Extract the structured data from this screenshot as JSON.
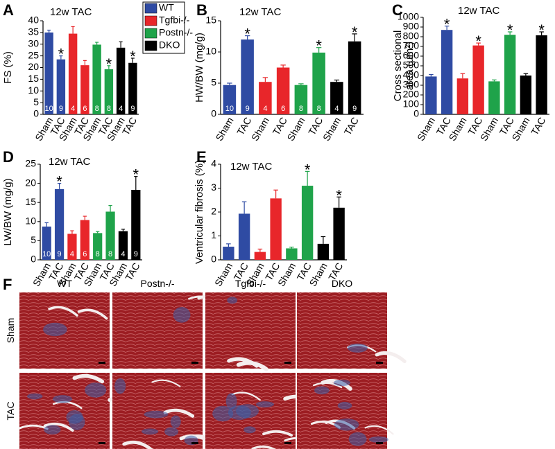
{
  "chart_data": [
    {
      "type": "bar",
      "label": "A",
      "title": "12w TAC",
      "ylabel": "FS (%)",
      "categories": [
        "Sham",
        "TAC",
        "Sham",
        "TAC",
        "Sham",
        "TAC",
        "Sham",
        "TAC"
      ],
      "values": [
        35,
        23.5,
        34.5,
        21,
        29.8,
        19.3,
        28.5,
        22
      ],
      "errors": [
        1,
        1.5,
        3,
        2,
        1,
        1.5,
        2.5,
        2
      ],
      "colors": [
        "#2f4ba3",
        "#2f4ba3",
        "#e8262a",
        "#e8262a",
        "#1fa34a",
        "#1fa34a",
        "#000000",
        "#000000"
      ],
      "bar_labels": [
        "10",
        "9",
        "4",
        "6",
        "8",
        "8",
        "4",
        "9"
      ],
      "significance": [
        null,
        "*",
        null,
        null,
        null,
        "*",
        null,
        "*"
      ],
      "ylim": [
        0,
        40
      ],
      "yticks": [
        0,
        5,
        10,
        15,
        20,
        25,
        30,
        35,
        40
      ],
      "legend": [
        {
          "name": "WT",
          "color": "#2f4ba3"
        },
        {
          "name": "Tgfbi-/-",
          "color": "#e8262a"
        },
        {
          "name": "Postn-/-",
          "color": "#1fa34a"
        },
        {
          "name": "DKO",
          "color": "#000000"
        }
      ]
    },
    {
      "type": "bar",
      "label": "B",
      "title": "12w TAC",
      "ylabel": "HW/BW (mg/g)",
      "categories": [
        "Sham",
        "TAC",
        "Sham",
        "TAC",
        "Sham",
        "TAC",
        "Sham",
        "TAC"
      ],
      "values": [
        4.7,
        12,
        5.2,
        7.5,
        4.7,
        9.9,
        5.2,
        11.7
      ],
      "errors": [
        0.3,
        0.6,
        0.7,
        0.4,
        0.2,
        0.8,
        0.3,
        1.2
      ],
      "colors": [
        "#2f4ba3",
        "#2f4ba3",
        "#e8262a",
        "#e8262a",
        "#1fa34a",
        "#1fa34a",
        "#000000",
        "#000000"
      ],
      "bar_labels": [
        "10",
        "9",
        "4",
        "6",
        "8",
        "8",
        "4",
        "9"
      ],
      "significance": [
        null,
        "*",
        null,
        null,
        null,
        "*",
        null,
        "*"
      ],
      "ylim": [
        0,
        15
      ],
      "yticks": [
        0,
        5,
        10,
        15
      ]
    },
    {
      "type": "bar",
      "label": "C",
      "title": "12w TAC",
      "ylabel_lines": [
        "Cross sectional",
        "area (μm²)"
      ],
      "categories": [
        "Sham",
        "TAC",
        "Sham",
        "TAC",
        "Sham",
        "TAC",
        "Sham",
        "TAC"
      ],
      "values": [
        390,
        870,
        370,
        710,
        340,
        820,
        400,
        815
      ],
      "errors": [
        20,
        40,
        50,
        25,
        15,
        30,
        20,
        35
      ],
      "colors": [
        "#2f4ba3",
        "#2f4ba3",
        "#e8262a",
        "#e8262a",
        "#1fa34a",
        "#1fa34a",
        "#000000",
        "#000000"
      ],
      "significance": [
        null,
        "*",
        null,
        "*",
        null,
        "*",
        null,
        "*"
      ],
      "ylim": [
        0,
        1000
      ],
      "yticks": [
        0,
        100,
        200,
        300,
        400,
        500,
        600,
        700,
        800,
        900,
        1000
      ]
    },
    {
      "type": "bar",
      "label": "D",
      "title": "12w TAC",
      "ylabel": "LW/BW (mg/g)",
      "categories": [
        "Sham",
        "TAC",
        "Sham",
        "TAC",
        "Sham",
        "TAC",
        "Sham",
        "TAC"
      ],
      "values": [
        8.7,
        18.5,
        6.8,
        10.4,
        7,
        12.6,
        7.5,
        18.3
      ],
      "errors": [
        1,
        1.5,
        0.8,
        1,
        0.4,
        1.6,
        0.5,
        3.5
      ],
      "colors": [
        "#2f4ba3",
        "#2f4ba3",
        "#e8262a",
        "#e8262a",
        "#1fa34a",
        "#1fa34a",
        "#000000",
        "#000000"
      ],
      "bar_labels": [
        "10",
        "9",
        "4",
        "6",
        "8",
        "8",
        "4",
        "9"
      ],
      "significance": [
        null,
        "*",
        null,
        null,
        null,
        null,
        null,
        "*"
      ],
      "ylim": [
        0,
        25
      ],
      "yticks": [
        0,
        5,
        10,
        15,
        20,
        25
      ]
    },
    {
      "type": "bar",
      "label": "E",
      "title": "12w TAC",
      "ylabel": "Ventricular fibrosis (%)",
      "categories": [
        "Sham",
        "TAC",
        "Sham",
        "TAC",
        "Sham",
        "TAC",
        "Sham",
        "TAC"
      ],
      "values": [
        0.55,
        1.93,
        0.33,
        2.57,
        0.48,
        3.1,
        0.67,
        2.18
      ],
      "errors": [
        0.12,
        0.5,
        0.12,
        0.35,
        0.05,
        0.6,
        0.3,
        0.45
      ],
      "colors": [
        "#2f4ba3",
        "#2f4ba3",
        "#e8262a",
        "#e8262a",
        "#1fa34a",
        "#1fa34a",
        "#000000",
        "#000000"
      ],
      "significance": [
        null,
        null,
        null,
        null,
        null,
        "*",
        null,
        "*"
      ],
      "ylim": [
        0,
        4
      ],
      "yticks": [
        0,
        1,
        2,
        3,
        4
      ]
    }
  ],
  "histology": {
    "label": "F",
    "columns": [
      "WT",
      "Postn-/-",
      "Tgfbi-/-",
      "DKO"
    ],
    "rows": [
      "Sham",
      "TAC"
    ]
  }
}
